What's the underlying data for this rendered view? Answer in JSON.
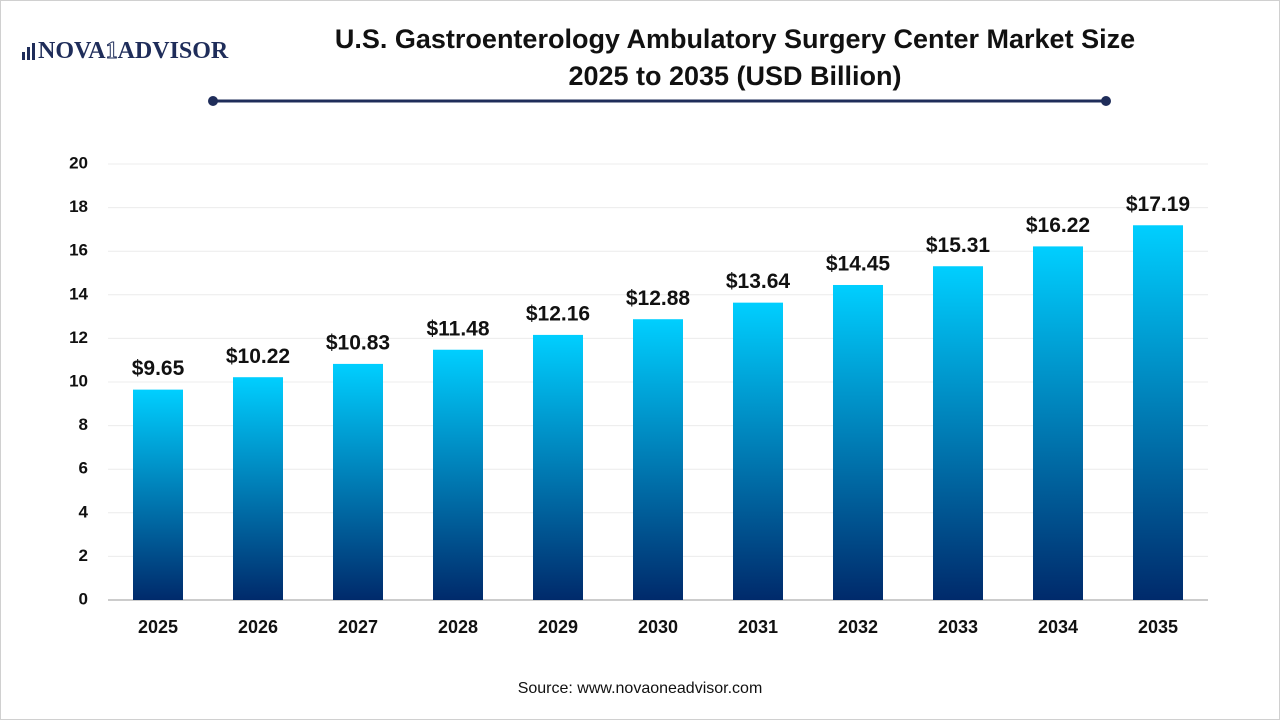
{
  "logo": [
    "NOVA",
    "1",
    "ADVISOR"
  ],
  "chart_data": {
    "type": "bar",
    "title": "U.S. Gastroenterology Ambulatory Surgery Center Market Size",
    "subtitle": "2025 to 2035  (USD Billion)",
    "categories": [
      "2025",
      "2026",
      "2027",
      "2028",
      "2029",
      "2030",
      "2031",
      "2032",
      "2033",
      "2034",
      "2035"
    ],
    "values": [
      9.65,
      10.22,
      10.83,
      11.48,
      12.16,
      12.88,
      13.64,
      14.45,
      15.31,
      16.22,
      17.19
    ],
    "value_labels": [
      "$9.65",
      "$10.22",
      "$10.83",
      "$11.48",
      "$12.16",
      "$12.88",
      "$13.64",
      "$14.45",
      "$15.31",
      "$16.22",
      "$17.19"
    ],
    "color_top": "#00cfff",
    "color_bottom": "#002a6b",
    "ylim": [
      0,
      20
    ],
    "yticks": [
      0,
      2,
      4,
      6,
      8,
      10,
      12,
      14,
      16,
      18,
      20
    ],
    "grid": true,
    "source": "Source: www.novaoneadvisor.com"
  }
}
